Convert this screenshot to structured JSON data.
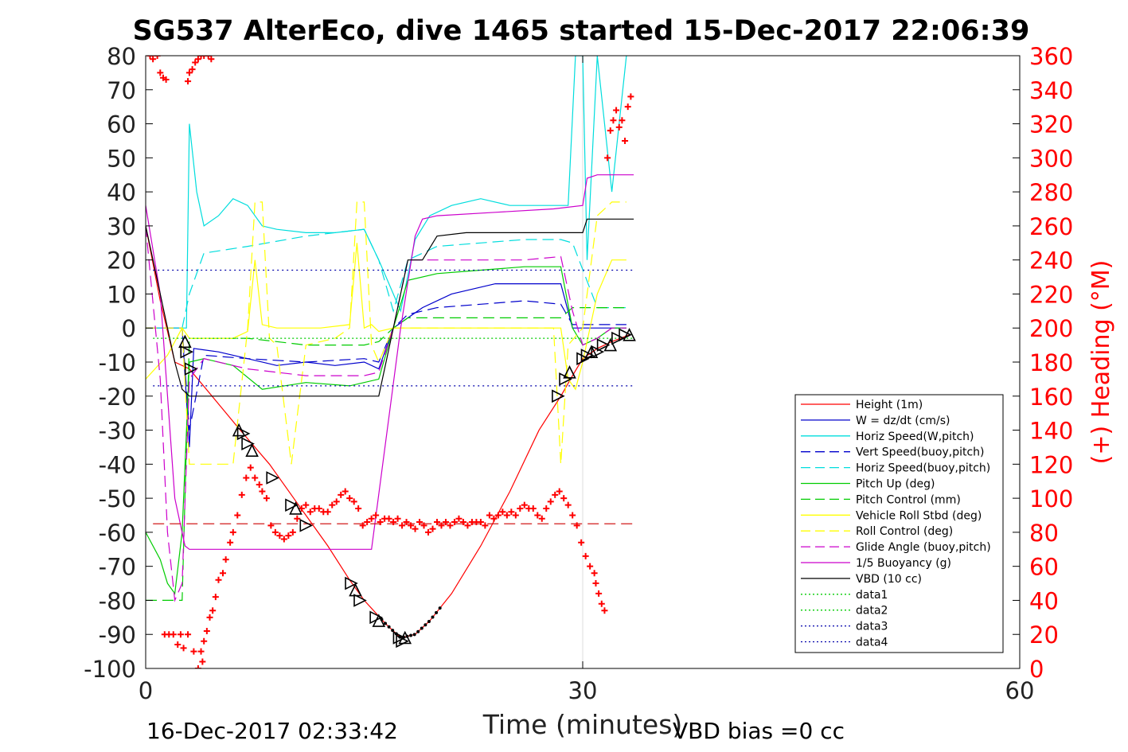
{
  "chart_data": {
    "type": "line",
    "title": "SG537 AlterEco, dive 1465 started 15-Dec-2017 22:06:39",
    "xlabel": "Time (minutes)",
    "ylabel_right": "(+) Heading (°M)",
    "xlim": [
      0,
      60
    ],
    "ylim_left": [
      -100,
      80
    ],
    "ylim_right": [
      0,
      360
    ],
    "x_ticks": [
      "0",
      "30",
      "60"
    ],
    "y_ticks_left": [
      "80",
      "70",
      "60",
      "50",
      "40",
      "30",
      "20",
      "10",
      "0",
      "-10",
      "-20",
      "-30",
      "-40",
      "-50",
      "-60",
      "-70",
      "-80",
      "-90",
      "-100"
    ],
    "y_ticks_right": [
      "360",
      "340",
      "320",
      "300",
      "280",
      "260",
      "240",
      "220",
      "200",
      "180",
      "160",
      "140",
      "120",
      "100",
      "80",
      "60",
      "40",
      "20",
      "0"
    ],
    "grid": false,
    "legend_position": "lower-right",
    "footer_left": "16-Dec-2017 02:33:42",
    "footer_right": "VBD bias =0 cc",
    "legend": [
      {
        "label": "Height (1m)",
        "color": "#ff0000",
        "style": "solid"
      },
      {
        "label": "W = dz/dt (cm/s)",
        "color": "#0000cc",
        "style": "solid"
      },
      {
        "label": "Horiz Speed(W,pitch)",
        "color": "#00dddd",
        "style": "solid"
      },
      {
        "label": "Vert Speed(buoy,pitch)",
        "color": "#0000cc",
        "style": "dashed"
      },
      {
        "label": "Horiz Speed(buoy,pitch)",
        "color": "#00dddd",
        "style": "dashed"
      },
      {
        "label": "Pitch Up (deg)",
        "color": "#00cc00",
        "style": "solid"
      },
      {
        "label": "Pitch Control (mm)",
        "color": "#00cc00",
        "style": "dashed"
      },
      {
        "label": "Vehicle Roll Stbd (deg)",
        "color": "#ffff00",
        "style": "solid"
      },
      {
        "label": "Roll Control (deg)",
        "color": "#ffff00",
        "style": "dashed"
      },
      {
        "label": "Glide Angle (buoy,pitch)",
        "color": "#cc00cc",
        "style": "dashed"
      },
      {
        "label": "1/5 Buoyancy (g)",
        "color": "#cc00cc",
        "style": "solid"
      },
      {
        "label": "VBD (10 cc)",
        "color": "#000000",
        "style": "solid"
      },
      {
        "label": "data1",
        "color": "#00cc00",
        "style": "dotted"
      },
      {
        "label": "data2",
        "color": "#00cc00",
        "style": "dotted"
      },
      {
        "label": "data3",
        "color": "#0000aa",
        "style": "dotted"
      },
      {
        "label": "data4",
        "color": "#0000aa",
        "style": "dotted"
      }
    ],
    "series": [
      {
        "name": "Height (1m)",
        "color": "#ff0000",
        "dash": "",
        "x": [
          0,
          1,
          2,
          3,
          6.5,
          8.5,
          10.5,
          12.5,
          14,
          15,
          16.5,
          17.5,
          18.5,
          19.5,
          21,
          23,
          25,
          27,
          28.5,
          29.3,
          30,
          31,
          32,
          33.2
        ],
        "y": [
          30,
          8,
          -10,
          -12,
          -30,
          -40,
          -52,
          -64,
          -74,
          -80,
          -87,
          -91,
          -90,
          -86,
          -78,
          -64,
          -48,
          -30,
          -20,
          -14,
          -9,
          -6,
          -4,
          -2
        ]
      },
      {
        "name": "W = dz/dt (cm/s)",
        "color": "#0000cc",
        "dash": "",
        "x": [
          0,
          1.5,
          2.5,
          3,
          3.3,
          5,
          7,
          9,
          11,
          13,
          15,
          16,
          17,
          19,
          21,
          24,
          27,
          28.5,
          29.3,
          30,
          31,
          32,
          33
        ],
        "y": [
          0,
          0,
          0,
          -35,
          -6,
          -7,
          -9,
          -11,
          -10,
          -11,
          -10,
          -12,
          0,
          6,
          10,
          13,
          13,
          13,
          0,
          0,
          0,
          0,
          0
        ]
      },
      {
        "name": "Horiz Speed(W,pitch)",
        "color": "#00dddd",
        "dash": "",
        "x": [
          0,
          1.5,
          2.5,
          2.8,
          3,
          3.5,
          4,
          5,
          6,
          7,
          8,
          9,
          11,
          13,
          15,
          16,
          17,
          17.5,
          18.5,
          19.5,
          21,
          23,
          25,
          27,
          29,
          29.5,
          30,
          30.3,
          31,
          32,
          33
        ],
        "y": [
          0,
          0,
          0,
          0,
          60,
          40,
          30,
          33,
          38,
          36,
          30,
          29,
          28,
          28,
          29,
          20,
          10,
          5,
          26,
          33,
          36,
          38,
          36,
          36,
          36,
          80,
          80,
          20,
          80,
          40,
          80
        ]
      },
      {
        "name": "Vert Speed(buoy,pitch)",
        "color": "#0000cc",
        "dash": "14,7",
        "x": [
          0,
          2.5,
          3,
          4,
          7,
          11,
          15,
          16,
          17,
          18,
          20,
          23,
          26,
          28.5,
          29.3,
          31,
          33
        ],
        "y": [
          0,
          0,
          -30,
          -8,
          -9,
          -10,
          -9,
          -10,
          0,
          4,
          6,
          7,
          8,
          7,
          1,
          1,
          1
        ]
      },
      {
        "name": "Horiz Speed(buoy,pitch)",
        "color": "#00dddd",
        "dash": "14,7",
        "x": [
          2.5,
          3,
          4,
          7,
          11,
          15,
          16,
          17,
          18,
          20,
          23,
          26,
          28.5,
          29.3,
          31,
          33
        ],
        "y": [
          0,
          10,
          22,
          24,
          27,
          29,
          20,
          5,
          20,
          24,
          25,
          26,
          26,
          25,
          6,
          6
        ]
      },
      {
        "name": "Pitch Up (deg)",
        "color": "#00cc00",
        "dash": "",
        "x": [
          0,
          1,
          1.5,
          2,
          2.5,
          3,
          4,
          6,
          8,
          11,
          14,
          16,
          17,
          18,
          20,
          23,
          26,
          28.5,
          29.3,
          30,
          31,
          32,
          33
        ],
        "y": [
          -60,
          -68,
          -75,
          -78,
          -60,
          -10,
          -9,
          -11,
          -18,
          -16,
          -17,
          -15,
          0,
          14,
          16,
          17,
          18,
          18,
          0,
          -5,
          -3,
          0,
          0
        ]
      },
      {
        "name": "Pitch Control (mm)",
        "color": "#00cc00",
        "dash": "14,7",
        "x": [
          0,
          1,
          2.5,
          3,
          7,
          11,
          15,
          16,
          17,
          18,
          22,
          26,
          28.5,
          29.3,
          31,
          33
        ],
        "y": [
          -80,
          -80,
          -80,
          -3,
          -3,
          -5,
          -5,
          -4,
          0,
          3,
          3,
          3,
          3,
          6,
          6,
          6
        ]
      },
      {
        "name": "Vehicle Roll Stbd (deg)",
        "color": "#ffff00",
        "dash": "",
        "x": [
          0,
          1.5,
          2.5,
          3,
          6,
          7,
          7.5,
          8,
          9,
          12,
          14,
          14.5,
          15,
          15.5,
          16,
          17,
          18,
          21,
          24,
          27,
          28,
          28.5,
          29,
          29.5,
          30,
          31,
          32,
          33
        ],
        "y": [
          -15,
          -8,
          0,
          -3,
          -3,
          -1,
          20,
          1,
          0,
          0,
          1,
          25,
          0,
          1,
          -1,
          0,
          0,
          0,
          0,
          0,
          0,
          0,
          -15,
          -18,
          -10,
          10,
          20,
          20
        ]
      },
      {
        "name": "Roll Control (deg)",
        "color": "#ffff00",
        "dash": "14,7",
        "x": [
          0,
          2.5,
          3,
          6,
          7,
          7.5,
          8,
          8.5,
          9,
          10,
          11,
          13,
          14,
          14.5,
          15,
          15.5,
          16,
          17,
          18,
          20,
          24,
          28,
          28.5,
          29,
          30,
          31,
          32,
          33
        ],
        "y": [
          0,
          0,
          -40,
          -40,
          0,
          37,
          37,
          -3,
          -5,
          -40,
          -5,
          -3,
          0,
          37,
          37,
          -5,
          -10,
          0,
          0,
          0,
          0,
          0,
          -40,
          -5,
          0,
          33,
          37,
          37
        ]
      },
      {
        "name": "Glide Angle (buoy,pitch)",
        "color": "#cc00cc",
        "dash": "14,7",
        "x": [
          0,
          1,
          1.5,
          2,
          2.5,
          3,
          4,
          7,
          11,
          15,
          16,
          17,
          18,
          20,
          23,
          26,
          28.5,
          29.3,
          30,
          31,
          32,
          33
        ],
        "y": [
          30,
          -15,
          -60,
          -80,
          -75,
          -15,
          -9,
          -12,
          -14,
          -14,
          -13,
          0,
          20,
          20,
          20,
          20,
          21,
          5,
          -5,
          -3,
          0,
          0
        ]
      },
      {
        "name": "1/5 Buoyancy (g)",
        "color": "#cc00cc",
        "dash": "",
        "x": [
          0,
          1,
          2,
          2.7,
          3,
          9,
          13,
          15.5,
          17.5,
          18.5,
          19,
          20,
          24,
          28,
          30,
          30.3,
          31,
          33.5
        ],
        "y": [
          36,
          10,
          -50,
          -64,
          -65,
          -65,
          -65,
          -65,
          0,
          27,
          32,
          33,
          34,
          35,
          36,
          44,
          45,
          45
        ]
      },
      {
        "name": "VBD (10 cc)",
        "color": "#000000",
        "dash": "",
        "x": [
          0,
          1,
          2,
          2.5,
          3,
          10,
          15,
          16,
          17,
          18,
          19,
          20,
          22,
          26,
          30,
          30.3,
          31,
          33.5
        ],
        "y": [
          30,
          10,
          -10,
          -18,
          -20,
          -20,
          -20,
          -20,
          0,
          20,
          20,
          27,
          28,
          28,
          28,
          32,
          32,
          32
        ]
      },
      {
        "name": "data1",
        "color": "#00cc00",
        "dash": "2,3",
        "x": [
          0.5,
          33.5
        ],
        "y": [
          -3,
          -3
        ]
      },
      {
        "name": "data3",
        "color": "#0000aa",
        "dash": "2,4",
        "x": [
          0.5,
          33.5
        ],
        "y": [
          17,
          17
        ]
      },
      {
        "name": "data4",
        "color": "#0000aa",
        "dash": "2,4",
        "x": [
          0.5,
          33.5
        ],
        "y": [
          -17,
          -17
        ]
      },
      {
        "name": "Heading reference",
        "color": "#cc0000",
        "dash": "14,7",
        "x": [
          0.5,
          33.5
        ],
        "y": [
          -57.5,
          -57.5
        ]
      }
    ],
    "heading_points": {
      "name": "Heading",
      "axis": "right",
      "color": "#ff0000",
      "x": [
        0.3,
        0.5,
        0.8,
        1.0,
        1.2,
        1.4,
        2.9,
        3.0,
        3.2,
        3.4,
        3.6,
        3.8,
        4.0,
        4.3,
        4.5,
        1.3,
        1.6,
        1.9,
        2.2,
        2.4,
        2.6,
        2.9,
        3.3,
        3.6,
        3.9,
        3.8,
        4.0,
        4.2,
        4.4,
        4.6,
        4.8,
        5.0,
        5.3,
        5.5,
        5.8,
        6.0,
        6.3,
        6.6,
        6.9,
        7.2,
        7.5,
        7.8,
        8.0,
        8.3,
        8.6,
        8.9,
        9.2,
        9.5,
        9.8,
        10.1,
        10.4,
        10.7,
        11.0,
        11.3,
        11.6,
        11.9,
        12.2,
        12.5,
        12.8,
        13.1,
        13.4,
        13.7,
        14.0,
        14.3,
        14.6,
        14.9,
        15.2,
        15.5,
        15.8,
        16.1,
        16.4,
        16.7,
        17.0,
        17.3,
        17.6,
        17.9,
        18.2,
        18.5,
        18.8,
        19.1,
        19.4,
        19.7,
        20.0,
        20.3,
        20.6,
        20.9,
        21.2,
        21.5,
        21.8,
        22.1,
        22.4,
        22.7,
        23.0,
        23.3,
        23.6,
        23.9,
        24.2,
        24.5,
        24.8,
        25.1,
        25.4,
        25.7,
        26.0,
        26.3,
        26.6,
        26.9,
        27.2,
        27.5,
        27.8,
        28.1,
        28.4,
        28.7,
        29.0,
        29.3,
        29.6,
        29.9,
        30.2,
        30.5,
        30.8,
        30.9,
        31.1,
        31.3,
        31.5,
        31.7,
        31.9,
        32.1,
        32.3,
        32.5,
        32.7,
        32.9,
        33.1,
        33.3
      ],
      "y": [
        360,
        358,
        360,
        350,
        347,
        346,
        345,
        350,
        352,
        356,
        358,
        360,
        360,
        360,
        358,
        20,
        20,
        20,
        14,
        20,
        12,
        20,
        10,
        0,
        4,
        10,
        16,
        22,
        30,
        34,
        42,
        52,
        56,
        64,
        74,
        80,
        90,
        102,
        112,
        118,
        112,
        108,
        104,
        100,
        84,
        80,
        78,
        76,
        78,
        80,
        88,
        94,
        96,
        92,
        94,
        94,
        92,
        92,
        96,
        98,
        102,
        104,
        100,
        98,
        94,
        84,
        86,
        88,
        90,
        86,
        88,
        88,
        86,
        88,
        84,
        86,
        84,
        82,
        86,
        84,
        80,
        82,
        86,
        84,
        86,
        84,
        86,
        88,
        86,
        84,
        86,
        86,
        86,
        84,
        90,
        88,
        90,
        92,
        90,
        92,
        90,
        94,
        96,
        94,
        94,
        90,
        88,
        94,
        98,
        102,
        104,
        100,
        96,
        90,
        84,
        74,
        66,
        60,
        56,
        50,
        44,
        38,
        34,
        300,
        316,
        322,
        328,
        318,
        322,
        310,
        330,
        336
      ]
    },
    "depth_markers": {
      "x": [
        2.7,
        2.8,
        3.1,
        6.4,
        6.7,
        7.0,
        7.3,
        8.7,
        10.0,
        10.3,
        11.0,
        14.1,
        14.4,
        14.7,
        15.8,
        16.0,
        17.4,
        17.6,
        17.8,
        28.3,
        28.8,
        29.1,
        30.0,
        30.3,
        30.6,
        31.0,
        31.4,
        31.9,
        32.4,
        32.9,
        33.2
      ],
      "y": [
        -4,
        -7,
        -12,
        -30,
        -31,
        -34,
        -36,
        -44,
        -52,
        -53,
        -58,
        -75,
        -77,
        -80,
        -85,
        -86,
        -91,
        -92,
        -91,
        -20,
        -15,
        -13,
        -9,
        -8,
        -7,
        -7,
        -5,
        -5,
        -3,
        -2,
        -2
      ]
    }
  }
}
